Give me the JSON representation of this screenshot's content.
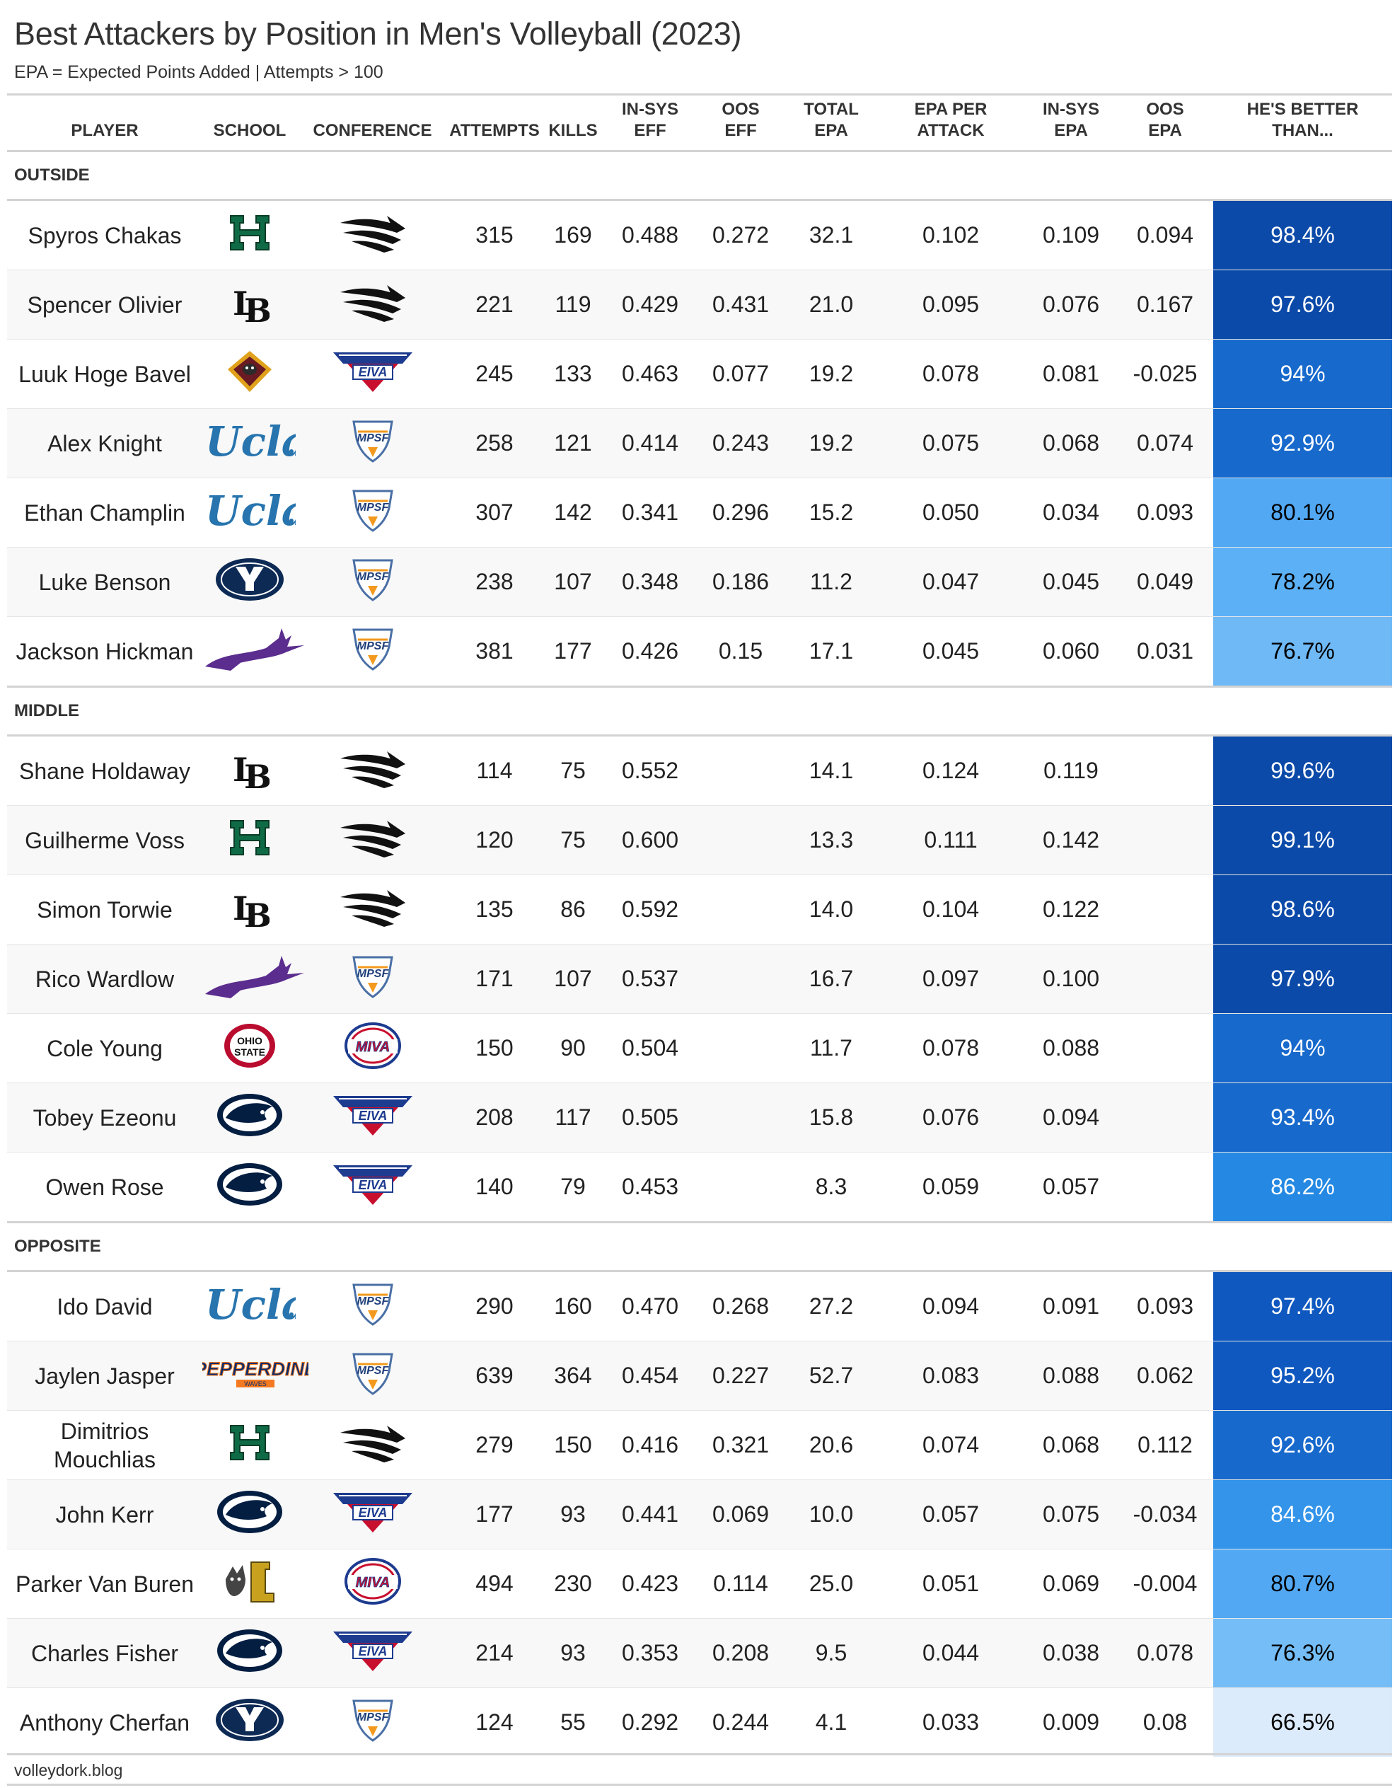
{
  "title": "Best Attackers by Position in Men's Volleyball (2023)",
  "subtitle": "EPA = Expected Points Added | Attempts > 100",
  "columns": {
    "player": "PLAYER",
    "school": "SCHOOL",
    "conference": "CONFERENCE",
    "attempts": "ATTEMPTS",
    "kills": "KILLS",
    "insys_eff_1": "IN-SYS",
    "insys_eff_2": "EFF",
    "oos_eff_1": "OOS",
    "oos_eff_2": "EFF",
    "total_epa_1": "TOTAL",
    "total_epa_2": "EPA",
    "epa_per_1": "EPA PER",
    "epa_per_2": "ATTACK",
    "insys_epa_1": "IN-SYS",
    "insys_epa_2": "EPA",
    "oos_epa_1": "OOS",
    "oos_epa_2": "EPA",
    "better_1": "HE'S BETTER",
    "better_2": "THAN..."
  },
  "footer": "volleydork.blog",
  "groups": [
    {
      "name": "OUTSIDE",
      "rows": [
        {
          "player": "Spyros Chakas",
          "school": "hawaii",
          "conference": "bigwest",
          "attempts": "315",
          "kills": "169",
          "insys_eff": "0.488",
          "oos_eff": "0.272",
          "total_epa": "32.1",
          "epa_per": "0.102",
          "insys_epa": "0.109",
          "oos_epa": "0.094",
          "better": "98.4%",
          "pct": 0.984
        },
        {
          "player": "Spencer Olivier",
          "school": "longbeach",
          "conference": "bigwest",
          "attempts": "221",
          "kills": "119",
          "insys_eff": "0.429",
          "oos_eff": "0.431",
          "total_epa": "21.0",
          "epa_per": "0.095",
          "insys_epa": "0.076",
          "oos_epa": "0.167",
          "better": "97.6%",
          "pct": 0.976
        },
        {
          "player": "Luuk Hoge Bavel",
          "school": "loyola",
          "conference": "eiva",
          "attempts": "245",
          "kills": "133",
          "insys_eff": "0.463",
          "oos_eff": "0.077",
          "total_epa": "19.2",
          "epa_per": "0.078",
          "insys_epa": "0.081",
          "oos_epa": "-0.025",
          "better": "94%",
          "pct": 0.94
        },
        {
          "player": "Alex Knight",
          "school": "ucla",
          "conference": "mpsf",
          "attempts": "258",
          "kills": "121",
          "insys_eff": "0.414",
          "oos_eff": "0.243",
          "total_epa": "19.2",
          "epa_per": "0.075",
          "insys_epa": "0.068",
          "oos_epa": "0.074",
          "better": "92.9%",
          "pct": 0.929
        },
        {
          "player": "Ethan Champlin",
          "school": "ucla",
          "conference": "mpsf",
          "attempts": "307",
          "kills": "142",
          "insys_eff": "0.341",
          "oos_eff": "0.296",
          "total_epa": "15.2",
          "epa_per": "0.050",
          "insys_epa": "0.034",
          "oos_epa": "0.093",
          "better": "80.1%",
          "pct": 0.801
        },
        {
          "player": "Luke Benson",
          "school": "byu",
          "conference": "mpsf",
          "attempts": "238",
          "kills": "107",
          "insys_eff": "0.348",
          "oos_eff": "0.186",
          "total_epa": "11.2",
          "epa_per": "0.047",
          "insys_epa": "0.045",
          "oos_epa": "0.049",
          "better": "78.2%",
          "pct": 0.782
        },
        {
          "player": "Jackson Hickman",
          "school": "gcu",
          "conference": "mpsf",
          "attempts": "381",
          "kills": "177",
          "insys_eff": "0.426",
          "oos_eff": "0.15",
          "total_epa": "17.1",
          "epa_per": "0.045",
          "insys_epa": "0.060",
          "oos_epa": "0.031",
          "better": "76.7%",
          "pct": 0.767
        }
      ]
    },
    {
      "name": "MIDDLE",
      "rows": [
        {
          "player": "Shane Holdaway",
          "school": "longbeach",
          "conference": "bigwest",
          "attempts": "114",
          "kills": "75",
          "insys_eff": "0.552",
          "oos_eff": "",
          "total_epa": "14.1",
          "epa_per": "0.124",
          "insys_epa": "0.119",
          "oos_epa": "",
          "better": "99.6%",
          "pct": 0.996
        },
        {
          "player": "Guilherme Voss",
          "school": "hawaii",
          "conference": "bigwest",
          "attempts": "120",
          "kills": "75",
          "insys_eff": "0.600",
          "oos_eff": "",
          "total_epa": "13.3",
          "epa_per": "0.111",
          "insys_epa": "0.142",
          "oos_epa": "",
          "better": "99.1%",
          "pct": 0.991
        },
        {
          "player": "Simon Torwie",
          "school": "longbeach",
          "conference": "bigwest",
          "attempts": "135",
          "kills": "86",
          "insys_eff": "0.592",
          "oos_eff": "",
          "total_epa": "14.0",
          "epa_per": "0.104",
          "insys_epa": "0.122",
          "oos_epa": "",
          "better": "98.6%",
          "pct": 0.986
        },
        {
          "player": "Rico Wardlow",
          "school": "gcu",
          "conference": "mpsf",
          "attempts": "171",
          "kills": "107",
          "insys_eff": "0.537",
          "oos_eff": "",
          "total_epa": "16.7",
          "epa_per": "0.097",
          "insys_epa": "0.100",
          "oos_epa": "",
          "better": "97.9%",
          "pct": 0.979
        },
        {
          "player": "Cole Young",
          "school": "ohiostate",
          "conference": "miva",
          "attempts": "150",
          "kills": "90",
          "insys_eff": "0.504",
          "oos_eff": "",
          "total_epa": "11.7",
          "epa_per": "0.078",
          "insys_epa": "0.088",
          "oos_epa": "",
          "better": "94%",
          "pct": 0.94
        },
        {
          "player": "Tobey Ezeonu",
          "school": "pennstate",
          "conference": "eiva",
          "attempts": "208",
          "kills": "117",
          "insys_eff": "0.505",
          "oos_eff": "",
          "total_epa": "15.8",
          "epa_per": "0.076",
          "insys_epa": "0.094",
          "oos_epa": "",
          "better": "93.4%",
          "pct": 0.934
        },
        {
          "player": "Owen Rose",
          "school": "pennstate",
          "conference": "eiva",
          "attempts": "140",
          "kills": "79",
          "insys_eff": "0.453",
          "oos_eff": "",
          "total_epa": "8.3",
          "epa_per": "0.059",
          "insys_epa": "0.057",
          "oos_epa": "",
          "better": "86.2%",
          "pct": 0.862
        }
      ]
    },
    {
      "name": "OPPOSITE",
      "rows": [
        {
          "player": "Ido David",
          "school": "ucla",
          "conference": "mpsf",
          "attempts": "290",
          "kills": "160",
          "insys_eff": "0.470",
          "oos_eff": "0.268",
          "total_epa": "27.2",
          "epa_per": "0.094",
          "insys_epa": "0.091",
          "oos_epa": "0.093",
          "better": "97.4%",
          "pct": 0.974
        },
        {
          "player": "Jaylen Jasper",
          "school": "pepperdine",
          "conference": "mpsf",
          "attempts": "639",
          "kills": "364",
          "insys_eff": "0.454",
          "oos_eff": "0.227",
          "total_epa": "52.7",
          "epa_per": "0.083",
          "insys_epa": "0.088",
          "oos_epa": "0.062",
          "better": "95.2%",
          "pct": 0.952
        },
        {
          "player": "Dimitrios Mouchlias",
          "school": "hawaii",
          "conference": "bigwest",
          "attempts": "279",
          "kills": "150",
          "insys_eff": "0.416",
          "oos_eff": "0.321",
          "total_epa": "20.6",
          "epa_per": "0.074",
          "insys_epa": "0.068",
          "oos_epa": "0.112",
          "better": "92.6%",
          "pct": 0.926
        },
        {
          "player": "John Kerr",
          "school": "pennstate",
          "conference": "eiva",
          "attempts": "177",
          "kills": "93",
          "insys_eff": "0.441",
          "oos_eff": "0.069",
          "total_epa": "10.0",
          "epa_per": "0.057",
          "insys_epa": "0.075",
          "oos_epa": "-0.034",
          "better": "84.6%",
          "pct": 0.846
        },
        {
          "player": "Parker Van Buren",
          "school": "lewis",
          "conference": "miva",
          "attempts": "494",
          "kills": "230",
          "insys_eff": "0.423",
          "oos_eff": "0.114",
          "total_epa": "25.0",
          "epa_per": "0.051",
          "insys_epa": "0.069",
          "oos_epa": "-0.004",
          "better": "80.7%",
          "pct": 0.807
        },
        {
          "player": "Charles Fisher",
          "school": "pennstate",
          "conference": "eiva",
          "attempts": "214",
          "kills": "93",
          "insys_eff": "0.353",
          "oos_eff": "0.208",
          "total_epa": "9.5",
          "epa_per": "0.044",
          "insys_epa": "0.038",
          "oos_epa": "0.078",
          "better": "76.3%",
          "pct": 0.763
        },
        {
          "player": "Anthony Cherfan",
          "school": "byu",
          "conference": "mpsf",
          "attempts": "124",
          "kills": "55",
          "insys_eff": "0.292",
          "oos_eff": "0.244",
          "total_epa": "4.1",
          "epa_per": "0.033",
          "insys_epa": "0.009",
          "oos_epa": "0.08",
          "better": "66.5%",
          "pct": 0.665
        }
      ]
    }
  ]
}
